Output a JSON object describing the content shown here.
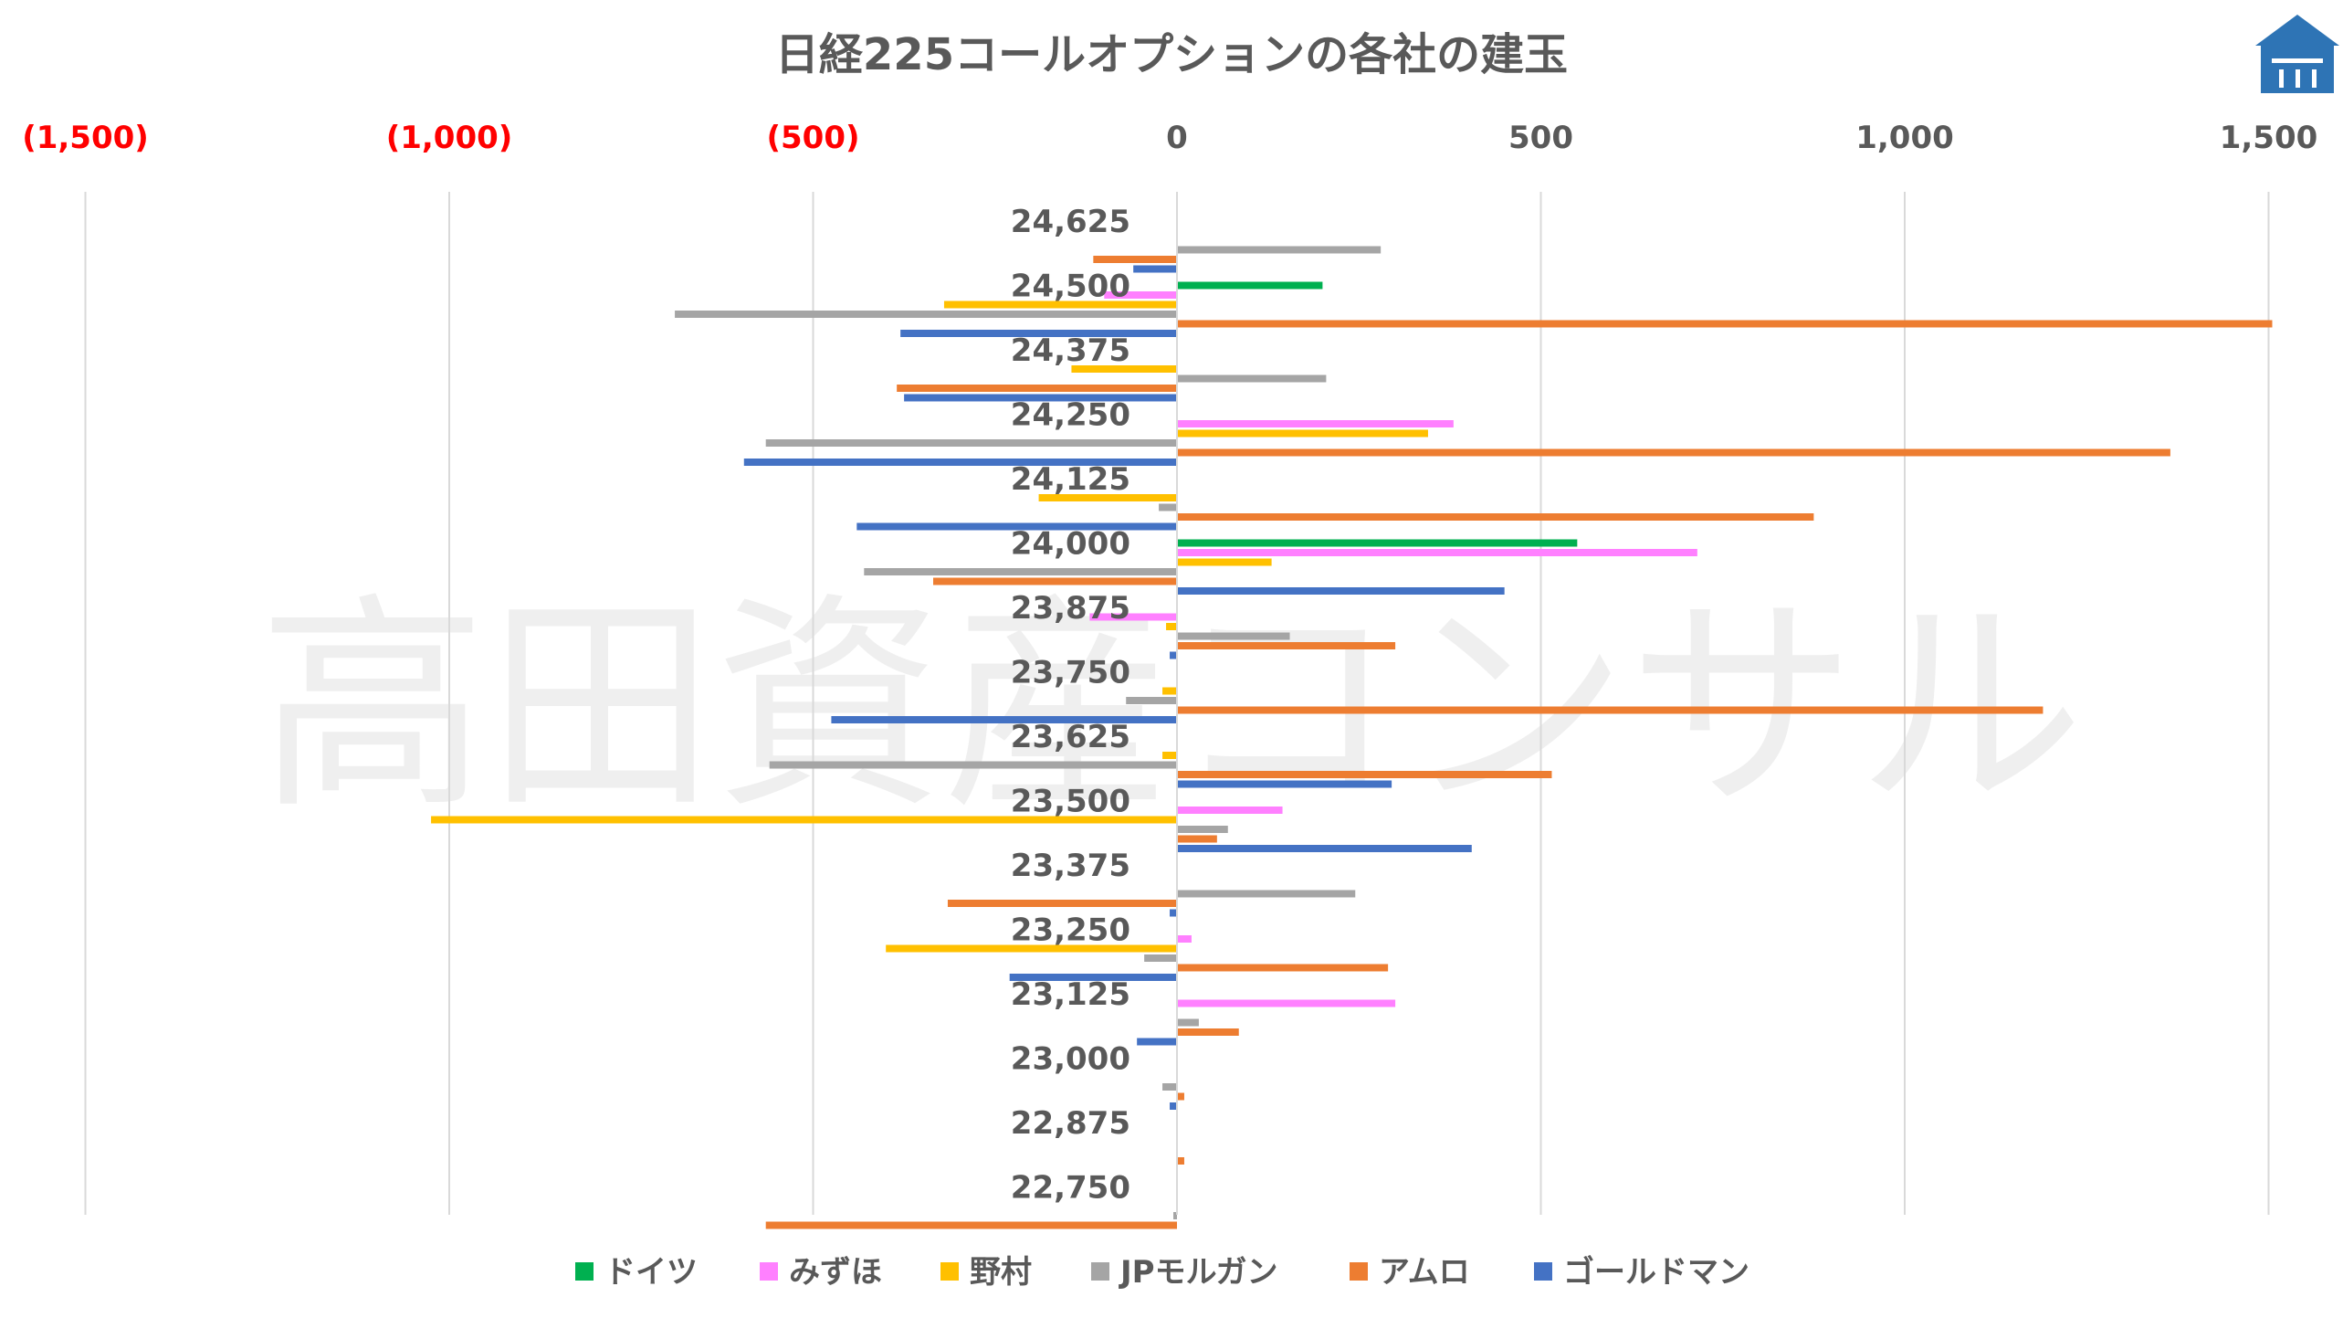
{
  "watermark": "高田資産コンサル",
  "chart_data": {
    "type": "bar",
    "orientation": "horizontal",
    "title": "日経225コールオプションの各社の建玉",
    "xlim": [
      -1500,
      1500
    ],
    "x_ticks": [
      {
        "value": -1500,
        "label": "(1,500)"
      },
      {
        "value": -1000,
        "label": "(1,000)"
      },
      {
        "value": -500,
        "label": "(500)"
      },
      {
        "value": 0,
        "label": "0"
      },
      {
        "value": 500,
        "label": "500"
      },
      {
        "value": 1000,
        "label": "1,000"
      },
      {
        "value": 1500,
        "label": "1,500"
      }
    ],
    "negative_tick_color": "#ff0000",
    "positive_tick_color": "#595959",
    "grid": true,
    "legend_position": "bottom",
    "categories": [
      "24,625",
      "24,500",
      "24,375",
      "24,250",
      "24,125",
      "24,000",
      "23,875",
      "23,750",
      "23,625",
      "23,500",
      "23,375",
      "23,250",
      "23,125",
      "23,000",
      "22,875",
      "22,750"
    ],
    "series": [
      {
        "name": "ドイツ",
        "color": "#00b050",
        "values": [
          0,
          200,
          0,
          0,
          0,
          550,
          0,
          0,
          0,
          0,
          0,
          0,
          0,
          0,
          0,
          0
        ]
      },
      {
        "name": "みずほ",
        "color": "#ff80ff",
        "values": [
          0,
          -100,
          0,
          380,
          0,
          715,
          -120,
          0,
          0,
          145,
          0,
          20,
          300,
          0,
          0,
          0
        ]
      },
      {
        "name": "野村",
        "color": "#ffc000",
        "values": [
          0,
          -320,
          -145,
          345,
          -190,
          130,
          -15,
          -20,
          -20,
          -1025,
          0,
          -400,
          0,
          0,
          0,
          0
        ]
      },
      {
        "name": "JPモルガン",
        "color": "#a5a5a5",
        "values": [
          280,
          -690,
          205,
          -565,
          -25,
          -430,
          155,
          -70,
          -560,
          70,
          245,
          -45,
          30,
          -20,
          0,
          -5
        ]
      },
      {
        "name": "アムロ",
        "color": "#ed7d31",
        "values": [
          -115,
          1505,
          -385,
          1365,
          875,
          -335,
          300,
          1190,
          515,
          55,
          -315,
          290,
          85,
          10,
          10,
          -565
        ]
      },
      {
        "name": "ゴールドマン",
        "color": "#4472c4",
        "values": [
          -60,
          -380,
          -375,
          -595,
          -440,
          450,
          -10,
          -475,
          295,
          405,
          -10,
          -230,
          -55,
          -10,
          0,
          0
        ]
      }
    ]
  }
}
